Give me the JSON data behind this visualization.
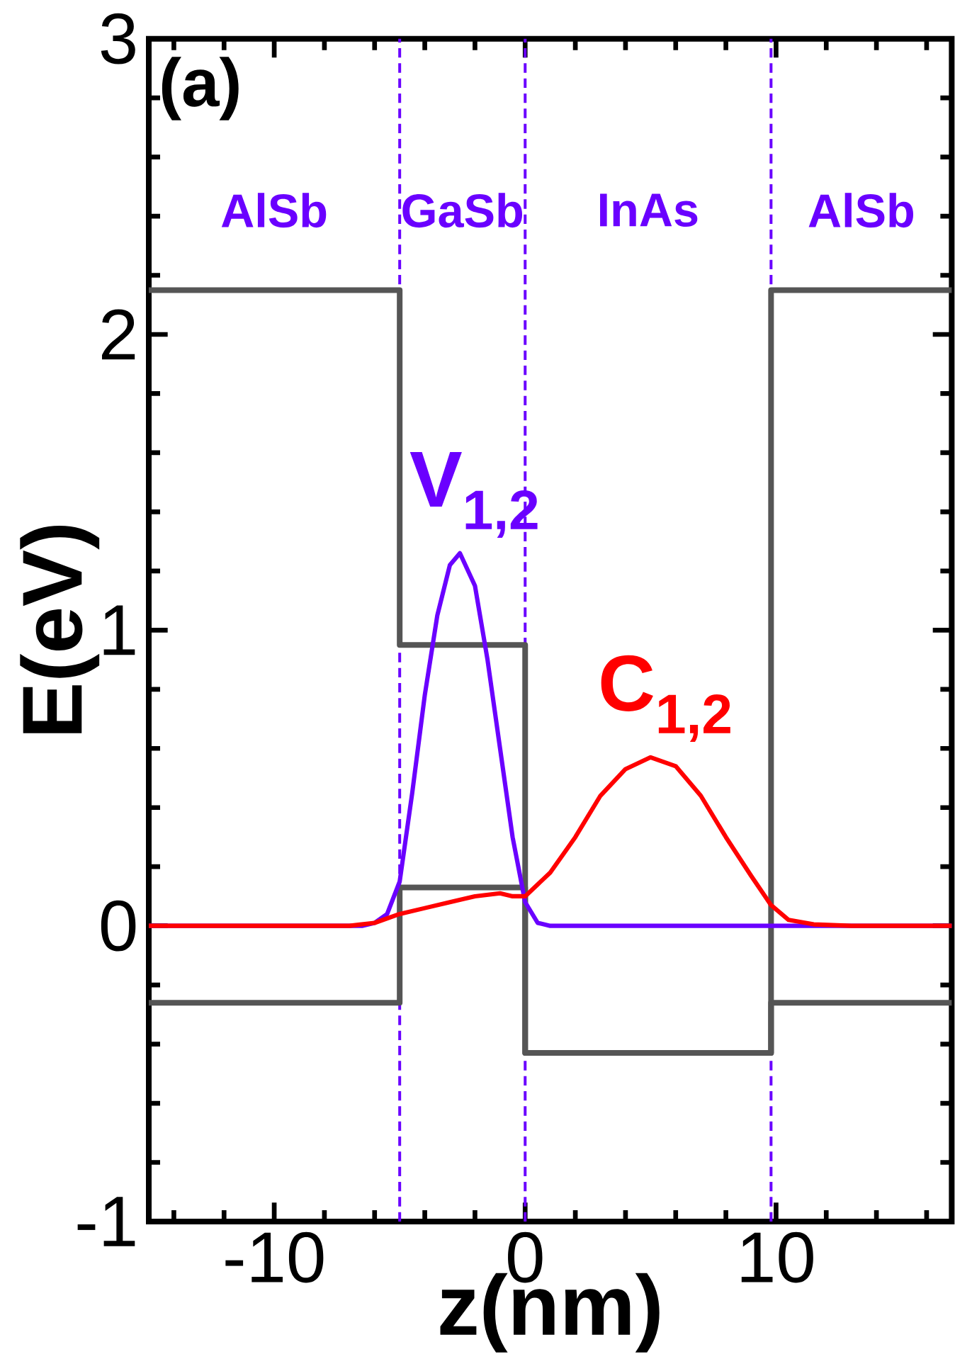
{
  "chart_data": {
    "type": "line",
    "xlabel": "z(nm)",
    "ylabel": "E(eV)",
    "xlim": [
      -15,
      17
    ],
    "ylim": [
      -1,
      3
    ],
    "xticks": [
      -10,
      0,
      10,
      {
        "value": -14,
        "label": null
      },
      {
        "value": -12,
        "label": null
      },
      {
        "value": -8,
        "label": null
      },
      {
        "value": -6,
        "label": null
      },
      {
        "value": -4,
        "label": null
      },
      {
        "value": -2,
        "label": null
      },
      {
        "value": 2,
        "label": null
      },
      {
        "value": 4,
        "label": null
      },
      {
        "value": 6,
        "label": null
      },
      {
        "value": 8,
        "label": null
      },
      {
        "value": 12,
        "label": null
      },
      {
        "value": 14,
        "label": null
      },
      {
        "value": 16,
        "label": null
      }
    ],
    "yticks": [
      -1,
      0,
      1,
      2,
      3,
      {
        "value": -0.8,
        "label": null
      },
      {
        "value": -0.6,
        "label": null
      },
      {
        "value": -0.4,
        "label": null
      },
      {
        "value": -0.2,
        "label": null
      },
      {
        "value": 0.2,
        "label": null
      },
      {
        "value": 0.4,
        "label": null
      },
      {
        "value": 0.6,
        "label": null
      },
      {
        "value": 0.8,
        "label": null
      },
      {
        "value": 1.2,
        "label": null
      },
      {
        "value": 1.4,
        "label": null
      },
      {
        "value": 1.6,
        "label": null
      },
      {
        "value": 1.8,
        "label": null
      },
      {
        "value": 2.2,
        "label": null
      },
      {
        "value": 2.4,
        "label": null
      },
      {
        "value": 2.6,
        "label": null
      },
      {
        "value": 2.8,
        "label": null
      }
    ],
    "grid": false,
    "marker": "none",
    "line_style": "solid",
    "series": [
      {
        "color": "#555555",
        "x": [
          -15,
          -5,
          -5,
          0,
          0,
          9.8,
          9.8,
          17
        ],
        "values": [
          2.15,
          2.15,
          0.95,
          0.95,
          -0.43,
          -0.43,
          2.15,
          2.15
        ]
      },
      {
        "color": "#555555",
        "x": [
          -15,
          -5,
          -5,
          0,
          0,
          9.8,
          9.8,
          17
        ],
        "values": [
          -0.26,
          -0.26,
          0.13,
          0.13,
          -0.43,
          -0.43,
          -0.26,
          -0.26
        ]
      },
      {
        "name": "V$_{1,2}$",
        "color": "#6a00ff",
        "x": [
          -15,
          -6.5,
          -6,
          -5.5,
          -5,
          -4.5,
          -4,
          -3.5,
          -3,
          -2.6,
          -2,
          -1.5,
          -1,
          -0.5,
          0,
          0.5,
          1,
          17
        ],
        "values": [
          0,
          0,
          0.01,
          0.04,
          0.15,
          0.45,
          0.78,
          1.05,
          1.22,
          1.26,
          1.15,
          0.9,
          0.6,
          0.3,
          0.08,
          0.01,
          0,
          0
        ]
      },
      {
        "name": "C$_{1,2}$",
        "color": "#ff0000",
        "x": [
          -15,
          -7,
          -6,
          -5,
          -4,
          -3,
          -2,
          -1,
          -0.5,
          0,
          1,
          2,
          3,
          4,
          5,
          6,
          7,
          8,
          9,
          9.8,
          10.5,
          11.5,
          13,
          17
        ],
        "values": [
          0,
          0,
          0.01,
          0.04,
          0.06,
          0.08,
          0.1,
          0.11,
          0.1,
          0.1,
          0.18,
          0.3,
          0.44,
          0.53,
          0.57,
          0.54,
          0.44,
          0.3,
          0.17,
          0.07,
          0.02,
          0.005,
          0,
          0
        ]
      }
    ],
    "ref_lines": [
      {
        "axis": "x",
        "value": -5,
        "color": "#6a00ff",
        "line_style": "dashed"
      },
      {
        "axis": "x",
        "value": 0,
        "color": "#6a00ff",
        "line_style": "dashed"
      },
      {
        "axis": "x",
        "value": 9.8,
        "color": "#6a00ff",
        "line_style": "dashed"
      }
    ],
    "annotations": [
      "(a)",
      "AlSb",
      "GaSb",
      "InAs",
      "AlSb"
    ]
  }
}
